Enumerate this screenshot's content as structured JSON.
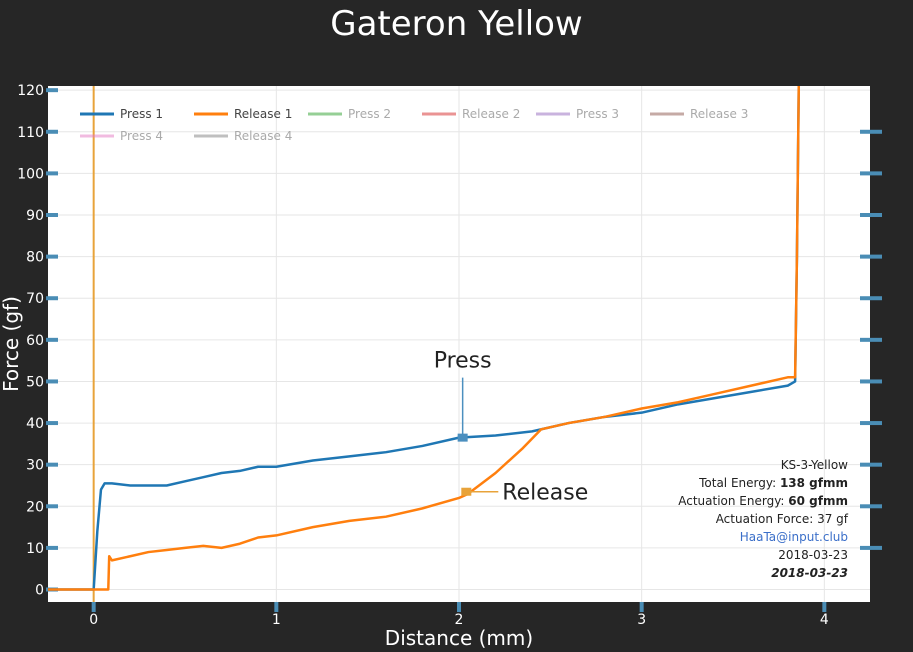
{
  "chart_data": {
    "type": "line",
    "title": "Gateron Yellow",
    "xlabel": "Distance (mm)",
    "ylabel": "Force (gf)",
    "xlim": [
      -0.25,
      4.25
    ],
    "ylim": [
      -3,
      121
    ],
    "x_ticks": [
      0,
      1,
      2,
      3,
      4
    ],
    "y_ticks": [
      0,
      10,
      20,
      30,
      40,
      50,
      60,
      70,
      80,
      90,
      100,
      110,
      120
    ],
    "grid": true,
    "legend_position": "top-left",
    "series": [
      {
        "name": "Press 1",
        "color": "#1f77b4",
        "x": [
          -0.25,
          0.0,
          0.02,
          0.04,
          0.06,
          0.1,
          0.2,
          0.3,
          0.4,
          0.5,
          0.6,
          0.7,
          0.8,
          0.9,
          1.0,
          1.2,
          1.4,
          1.6,
          1.8,
          2.0,
          2.2,
          2.4,
          2.6,
          2.8,
          3.0,
          3.2,
          3.4,
          3.6,
          3.8,
          3.84,
          3.85,
          3.86
        ],
        "y": [
          0,
          0,
          14,
          24,
          25.5,
          25.5,
          25,
          25,
          25,
          26,
          27,
          28,
          28.5,
          29.5,
          29.5,
          31,
          32,
          33,
          34.5,
          36.5,
          37,
          38,
          40,
          41.5,
          42.5,
          44.5,
          46,
          47.5,
          49,
          50,
          80,
          121
        ]
      },
      {
        "name": "Release 1",
        "color": "#ff7f0e",
        "x": [
          -0.25,
          0.08,
          0.085,
          0.1,
          0.2,
          0.3,
          0.4,
          0.5,
          0.6,
          0.7,
          0.8,
          0.9,
          1.0,
          1.2,
          1.4,
          1.6,
          1.8,
          2.0,
          2.05,
          2.2,
          2.35,
          2.45,
          2.6,
          2.8,
          3.0,
          3.2,
          3.4,
          3.6,
          3.8,
          3.84,
          3.85,
          3.86
        ],
        "y": [
          0,
          0,
          8,
          7,
          8,
          9,
          9.5,
          10,
          10.5,
          10,
          11,
          12.5,
          13,
          15,
          16.5,
          17.5,
          19.5,
          22,
          23,
          28,
          34,
          38.5,
          40,
          41.5,
          43.5,
          45,
          47,
          49,
          51,
          51,
          80,
          121
        ]
      },
      {
        "name": "Press 2",
        "color": "#2ca02c",
        "x": [],
        "y": []
      },
      {
        "name": "Release 2",
        "color": "#d62728",
        "x": [],
        "y": []
      },
      {
        "name": "Press 3",
        "color": "#9467bd",
        "x": [],
        "y": []
      },
      {
        "name": "Release 3",
        "color": "#8c564b",
        "x": [],
        "y": []
      },
      {
        "name": "Press 4",
        "color": "#e377c2",
        "x": [],
        "y": []
      },
      {
        "name": "Release 4",
        "color": "#7f7f7f",
        "x": [],
        "y": []
      }
    ],
    "vertical_line": {
      "x": 0,
      "color": "#e8a33a"
    },
    "annotations": [
      {
        "text": "Press",
        "x": 2.02,
        "y": 36.5,
        "color": "#4b8fbf"
      },
      {
        "text": "Release",
        "x": 2.04,
        "y": 23.5,
        "color": "#e8a33a"
      }
    ],
    "info_box": {
      "lines": [
        {
          "label": "KS-3-Yellow",
          "value": ""
        },
        {
          "label": "Total Energy: ",
          "value": "138 gfmm"
        },
        {
          "label": "Actuation Energy: ",
          "value": "60 gfmm"
        },
        {
          "label": "Actuation Force: 37 gf",
          "value": ""
        },
        {
          "label": "HaaTa@input.club",
          "value": ""
        },
        {
          "label": "2018-03-23",
          "value": ""
        },
        {
          "label": "2018-03-23",
          "value": ""
        }
      ],
      "link_color": "#3b6fc9"
    }
  }
}
